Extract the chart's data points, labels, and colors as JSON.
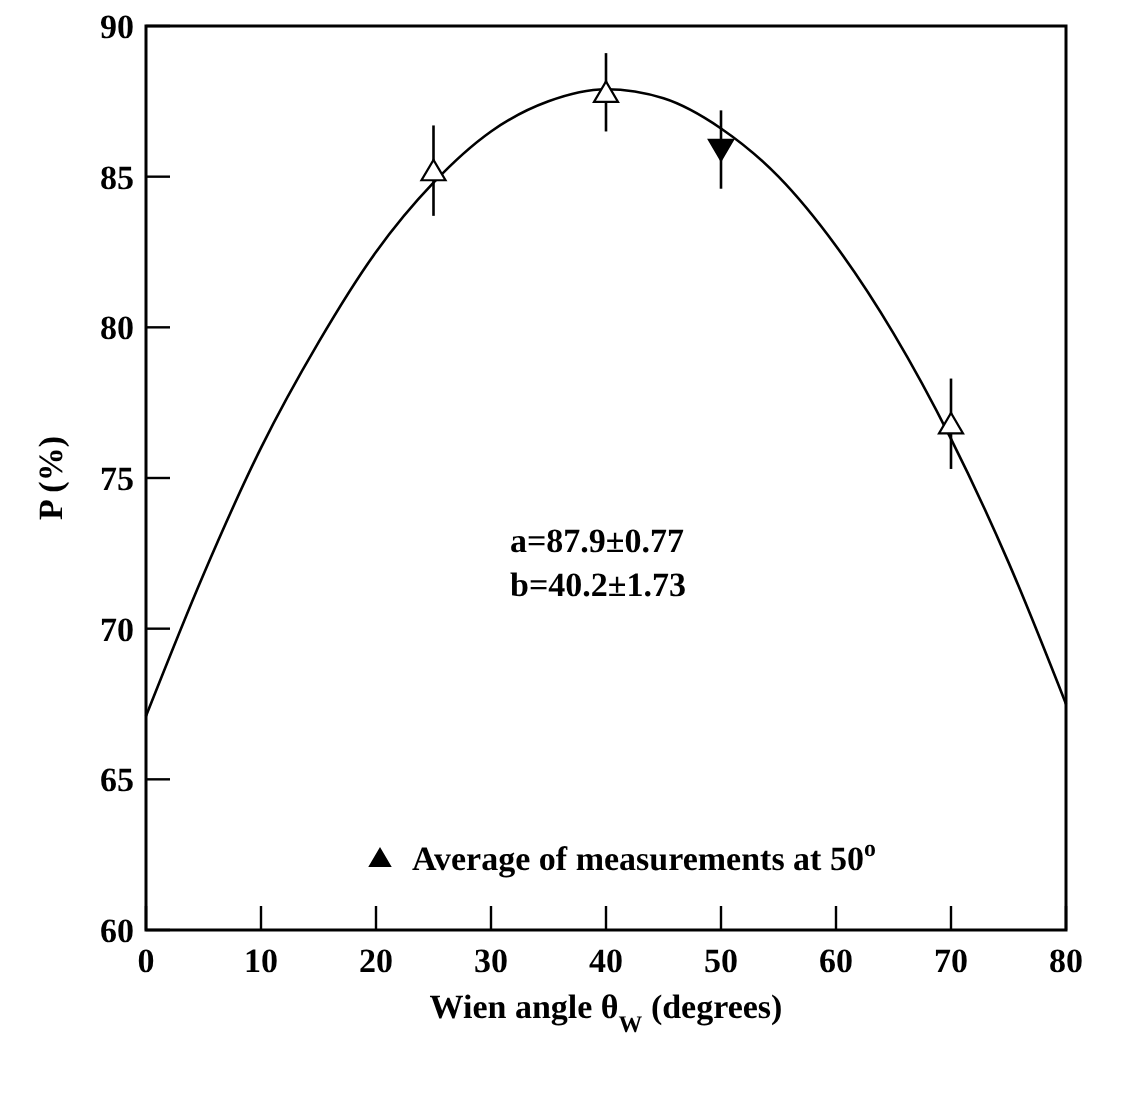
{
  "chart_data": {
    "type": "scatter",
    "xlabel": "Wien angle θ$_{W}$ (degrees)",
    "ylabel": "P (%)",
    "xlim": [
      0,
      80
    ],
    "xticks": [
      0,
      10,
      20,
      30,
      40,
      50,
      60,
      70,
      80
    ],
    "ylim": [
      60,
      90
    ],
    "yticks": [
      60,
      65,
      70,
      75,
      80,
      85,
      90
    ],
    "grid": false,
    "legend": "bottom",
    "marker": "triangle",
    "annotations": [
      "a=87.9±0.77",
      "b=40.2±1.73"
    ],
    "series": [
      {
        "type": "line",
        "color": "#000000",
        "marker": "none",
        "line_style": "solid",
        "x": [
          0,
          5,
          10,
          15,
          20,
          25,
          30,
          35,
          40,
          45,
          50,
          55,
          60,
          65,
          70,
          75,
          80
        ],
        "values": [
          67.1,
          71.8,
          76.0,
          79.5,
          82.5,
          84.8,
          86.5,
          87.5,
          87.9,
          87.6,
          86.6,
          85.0,
          82.7,
          79.8,
          76.3,
          72.2,
          67.5
        ]
      },
      {
        "color": "#ffffff",
        "x": [
          25,
          40,
          70
        ],
        "values": [
          85.2,
          87.8,
          76.8
        ],
        "errors": [
          1.5,
          1.3,
          1.5
        ]
      },
      {
        "name": "Average of measurements at 50$^{o}$",
        "color": "#000000",
        "x": [
          50
        ],
        "values": [
          85.9
        ],
        "errors": [
          1.3
        ]
      }
    ]
  }
}
